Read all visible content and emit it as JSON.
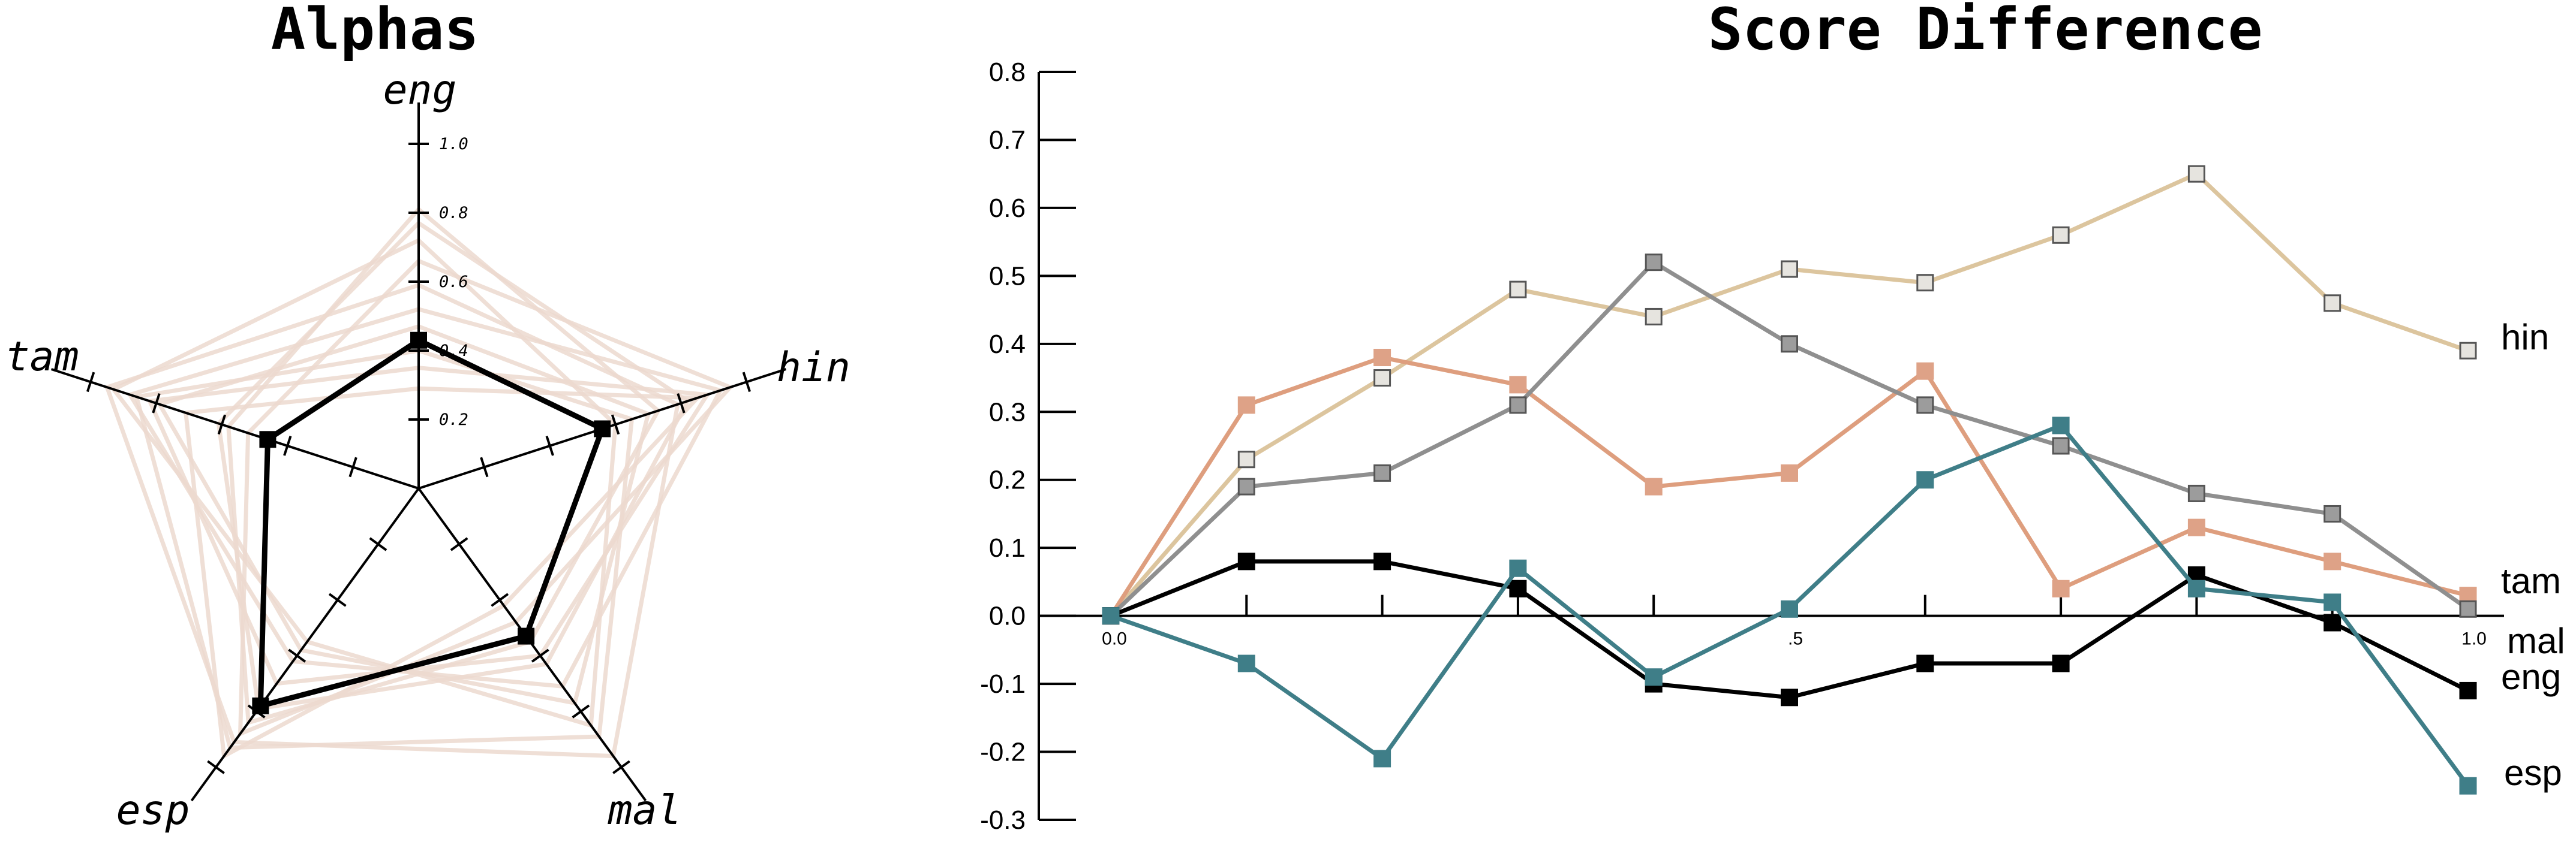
{
  "chart_data": [
    {
      "type": "radar",
      "title": "Alphas",
      "axes": [
        "eng",
        "hin",
        "mal",
        "esp",
        "tam"
      ],
      "tick_labels": [
        "0.2",
        "0.4",
        "0.6",
        "0.8",
        "1.0"
      ],
      "range": [
        0,
        1.0
      ],
      "highlight": {
        "color": "#000000",
        "values": [
          0.43,
          0.56,
          0.53,
          0.78,
          0.46
        ]
      },
      "background_series_color": "#ecd9cf",
      "background_series": [
        [
          0.59,
          0.79,
          0.96,
          0.91,
          0.95
        ],
        [
          0.81,
          0.73,
          0.55,
          0.84,
          0.58
        ],
        [
          0.52,
          0.92,
          0.71,
          0.62,
          0.88
        ],
        [
          0.29,
          0.85,
          0.42,
          0.96,
          0.71
        ],
        [
          0.72,
          0.6,
          0.85,
          0.55,
          0.93
        ],
        [
          0.35,
          0.88,
          0.6,
          0.7,
          0.82
        ],
        [
          0.66,
          0.95,
          0.48,
          0.88,
          0.52
        ],
        [
          0.47,
          0.7,
          0.77,
          0.58,
          0.79
        ],
        [
          0.77,
          0.82,
          0.63,
          0.79,
          0.61
        ],
        [
          0.4,
          0.65,
          0.89,
          0.93,
          0.86
        ]
      ]
    },
    {
      "type": "line",
      "title": "Score Difference",
      "xlabel": "",
      "ylabel": "",
      "ylim": [
        -0.3,
        0.8
      ],
      "xlim": [
        -0.02,
        1.02
      ],
      "y_ticks": [
        "0.8",
        "0.7",
        "0.6",
        "0.5",
        "0.4",
        "0.3",
        "0.2",
        "0.1",
        "0.0",
        "-0.1",
        "-0.2",
        "-0.3"
      ],
      "x_tick_labels": [
        "0.0",
        ".5",
        "1.0"
      ],
      "x_labeled_ticks": [
        0,
        0.5,
        1.0
      ],
      "x_minor_ticks": [
        0.1,
        0.2,
        0.3,
        0.4,
        0.6,
        0.7,
        0.8,
        0.9
      ],
      "x": [
        0,
        0.1,
        0.2,
        0.3,
        0.4,
        0.5,
        0.6,
        0.7,
        0.8,
        0.9,
        1.0
      ],
      "series": [
        {
          "name": "hin",
          "color": "#dcc59e",
          "marker": "#e6e4df",
          "values": [
            0.0,
            0.23,
            0.35,
            0.48,
            0.44,
            0.51,
            0.49,
            0.56,
            0.65,
            0.46,
            0.39
          ]
        },
        {
          "name": "tam",
          "color": "#de9e7e",
          "marker": "#dea287",
          "values": [
            0.0,
            0.31,
            0.38,
            0.34,
            0.19,
            0.21,
            0.36,
            0.04,
            0.13,
            0.08,
            0.03
          ]
        },
        {
          "name": "mal",
          "color": "#8f8f8f",
          "marker": "#9c9c9c",
          "values": [
            0.0,
            0.19,
            0.21,
            0.31,
            0.52,
            0.4,
            0.31,
            0.25,
            0.18,
            0.15,
            0.01
          ]
        },
        {
          "name": "eng",
          "color": "#000000",
          "marker": "#000000",
          "values": [
            0.0,
            0.08,
            0.08,
            0.04,
            -0.1,
            -0.12,
            -0.07,
            -0.07,
            0.06,
            -0.01,
            -0.11
          ]
        },
        {
          "name": "esp",
          "color": "#3f7e88",
          "marker": "#3f7e88",
          "values": [
            0.0,
            -0.07,
            -0.21,
            0.07,
            -0.09,
            0.01,
            0.2,
            0.28,
            0.04,
            0.02,
            -0.25
          ]
        }
      ]
    }
  ]
}
